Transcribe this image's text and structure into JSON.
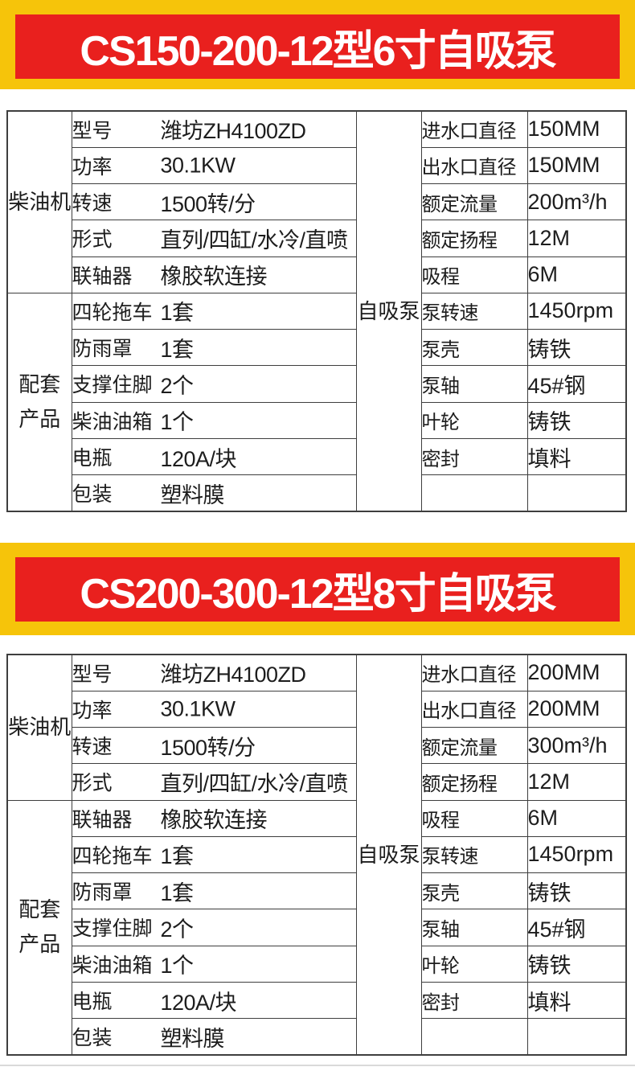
{
  "colors": {
    "banner_yellow": "#F6C40A",
    "banner_red": "#E9201E",
    "table_border": "#3E3E3E",
    "text": "#1D1D1D",
    "banner_text": "#FFFFFF"
  },
  "sections": [
    {
      "banner_title": "CS150-200-12型6寸自吸泵",
      "left": {
        "group1_header": "柴油机",
        "group1_rows": [
          {
            "label": "型号",
            "value": "潍坊ZH4100ZD"
          },
          {
            "label": "功率",
            "value": "30.1KW"
          },
          {
            "label": "转速",
            "value": "1500转/分"
          },
          {
            "label": "形式",
            "value": "直列/四缸/水冷/直喷"
          },
          {
            "label": "联轴器",
            "value": "橡胶软连接"
          }
        ],
        "group2_header": "配套\n产品",
        "group2_rows": [
          {
            "label": "四轮拖车",
            "value": "1套"
          },
          {
            "label": "防雨罩",
            "value": "1套"
          },
          {
            "label": "支撑住脚",
            "value": "2个"
          },
          {
            "label": "柴油油箱",
            "value": "1个"
          },
          {
            "label": "电瓶",
            "value": "120A/块"
          },
          {
            "label": "包装",
            "value": "塑料膜"
          }
        ]
      },
      "right": {
        "header": "自吸泵",
        "rows": [
          {
            "label": "进水口直径",
            "value": "150MM"
          },
          {
            "label": "出水口直径",
            "value": "150MM"
          },
          {
            "label": "额定流量",
            "value": "200m³/h"
          },
          {
            "label": "额定扬程",
            "value": "12M"
          },
          {
            "label": "吸程",
            "value": "6M"
          },
          {
            "label": "泵转速",
            "value": "1450rpm"
          },
          {
            "label": "泵壳",
            "value": "铸铁"
          },
          {
            "label": "泵轴",
            "value": "45#钢"
          },
          {
            "label": "叶轮",
            "value": "铸铁"
          },
          {
            "label": "密封",
            "value": "填料"
          }
        ]
      }
    },
    {
      "banner_title": "CS200-300-12型8寸自吸泵",
      "left": {
        "group1_header": "柴油机",
        "group1_rows": [
          {
            "label": "型号",
            "value": "潍坊ZH4100ZD"
          },
          {
            "label": "功率",
            "value": "30.1KW"
          },
          {
            "label": "转速",
            "value": "1500转/分"
          },
          {
            "label": "形式",
            "value": "直列/四缸/水冷/直喷"
          }
        ],
        "group2_header": "配套\n产品",
        "group2_rows": [
          {
            "label": "联轴器",
            "value": "橡胶软连接"
          },
          {
            "label": "四轮拖车",
            "value": "1套"
          },
          {
            "label": "防雨罩",
            "value": "1套"
          },
          {
            "label": "支撑住脚",
            "value": "2个"
          },
          {
            "label": "柴油油箱",
            "value": "1个"
          },
          {
            "label": "电瓶",
            "value": "120A/块"
          },
          {
            "label": "包装",
            "value": "塑料膜"
          }
        ]
      },
      "right": {
        "header": "自吸泵",
        "rows": [
          {
            "label": "进水口直径",
            "value": "200MM"
          },
          {
            "label": "出水口直径",
            "value": "200MM"
          },
          {
            "label": "额定流量",
            "value": "300m³/h"
          },
          {
            "label": "额定扬程",
            "value": "12M"
          },
          {
            "label": "吸程",
            "value": "6M"
          },
          {
            "label": "泵转速",
            "value": "1450rpm"
          },
          {
            "label": "泵壳",
            "value": "铸铁"
          },
          {
            "label": "泵轴",
            "value": "45#钢"
          },
          {
            "label": "叶轮",
            "value": "铸铁"
          },
          {
            "label": "密封",
            "value": "填料"
          }
        ]
      }
    }
  ]
}
